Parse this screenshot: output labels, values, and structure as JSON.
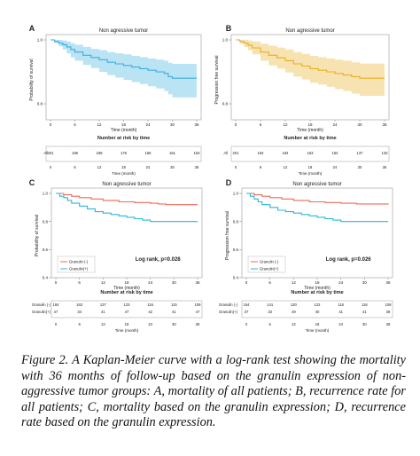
{
  "figure": {
    "caption_label": "Figure 2.",
    "caption_text": "A Kaplan-Meier curve with a log-rank test showing the mortality with 36 months of follow-up based on the granulin expression of non-aggressive tumor groups: A, mortality of all patients; B, recurrence rate for all patients; C, mortality based on the granulin expression; D, recurrence rate based on the granulin expression."
  },
  "colors": {
    "blue": "#3aaee0",
    "gold": "#e8b020",
    "red": "#ee6a5a",
    "cyan": "#2ab8d8"
  },
  "chart_data": [
    {
      "panel": "A",
      "type": "line",
      "title": "Non agressive tumor",
      "xlabel": "Time (month)",
      "ylabel": "Probability of survival",
      "xlim": [
        0,
        36
      ],
      "ylim": [
        0.75,
        1.0
      ],
      "xticks": [
        0,
        6,
        12,
        18,
        24,
        30,
        36
      ],
      "yticks": [
        "1.0",
        "0.8"
      ],
      "series": [
        {
          "color_key": "blue",
          "x": [
            0,
            1,
            2,
            3,
            4,
            5,
            6,
            8,
            10,
            12,
            14,
            16,
            18,
            20,
            22,
            24,
            26,
            28,
            29,
            30,
            33,
            36
          ],
          "y": [
            1.0,
            0.995,
            0.99,
            0.985,
            0.978,
            0.97,
            0.962,
            0.952,
            0.945,
            0.938,
            0.93,
            0.925,
            0.92,
            0.915,
            0.91,
            0.905,
            0.9,
            0.895,
            0.885,
            0.88,
            0.88,
            0.88
          ],
          "ci_lower": [
            1.0,
            0.99,
            0.98,
            0.97,
            0.958,
            0.945,
            0.935,
            0.922,
            0.912,
            0.9,
            0.89,
            0.882,
            0.875,
            0.868,
            0.862,
            0.855,
            0.848,
            0.84,
            0.83,
            0.82,
            0.82,
            0.82
          ],
          "ci_upper": [
            1.0,
            1.0,
            1.0,
            0.998,
            0.995,
            0.99,
            0.985,
            0.978,
            0.972,
            0.968,
            0.962,
            0.958,
            0.955,
            0.95,
            0.946,
            0.942,
            0.938,
            0.935,
            0.928,
            0.925,
            0.925,
            0.925
          ]
        }
      ],
      "risk_table": {
        "title": "Number at risk by time",
        "xlabel": "Time (month)",
        "rows": [
          {
            "label": "All",
            "values": [
              "201",
              "196",
              "189",
              "176",
              "166",
              "161",
              "153"
            ]
          }
        ]
      }
    },
    {
      "panel": "B",
      "type": "line",
      "title": "Non agressive tumor",
      "xlabel": "Time (month)",
      "ylabel": "Progression free survival",
      "xlim": [
        0,
        36
      ],
      "ylim": [
        0.75,
        1.0
      ],
      "xticks": [
        0,
        6,
        12,
        18,
        24,
        30,
        36
      ],
      "yticks": [
        "1.0",
        "0.8"
      ],
      "series": [
        {
          "color_key": "gold",
          "x": [
            0,
            1,
            2,
            3,
            4,
            6,
            8,
            10,
            12,
            14,
            16,
            18,
            20,
            22,
            24,
            26,
            28,
            30,
            33,
            36
          ],
          "y": [
            1.0,
            0.995,
            0.99,
            0.983,
            0.975,
            0.962,
            0.952,
            0.944,
            0.935,
            0.925,
            0.918,
            0.91,
            0.905,
            0.9,
            0.895,
            0.89,
            0.885,
            0.88,
            0.88,
            0.88
          ],
          "ci_lower": [
            1.0,
            0.988,
            0.978,
            0.968,
            0.955,
            0.935,
            0.92,
            0.91,
            0.898,
            0.885,
            0.876,
            0.866,
            0.86,
            0.853,
            0.846,
            0.84,
            0.832,
            0.825,
            0.825,
            0.825
          ],
          "ci_upper": [
            1.0,
            1.0,
            1.0,
            0.998,
            0.995,
            0.988,
            0.982,
            0.976,
            0.97,
            0.962,
            0.956,
            0.95,
            0.946,
            0.942,
            0.938,
            0.935,
            0.93,
            0.926,
            0.926,
            0.926
          ]
        }
      ],
      "risk_table": {
        "title": "Number at risk by time",
        "xlabel": "Time (month)",
        "rows": [
          {
            "label": "All",
            "values": [
              "201",
              "194",
              "184",
              "163",
              "152",
              "137",
              "133"
            ]
          }
        ]
      }
    },
    {
      "panel": "C",
      "type": "line",
      "title": "Non agressive tumor",
      "xlabel": "Time (month)",
      "ylabel": "Probability of survival",
      "xlim": [
        0,
        36
      ],
      "ylim": [
        0.4,
        1.0
      ],
      "xticks": [
        0,
        6,
        12,
        18,
        24,
        30,
        36
      ],
      "yticks": [
        "1.0",
        "0.8",
        "0.6",
        "0.4"
      ],
      "annotation": "Log rank, p=0.028",
      "legend": [
        "Granulin (-)",
        "Granulin(+)"
      ],
      "series": [
        {
          "name": "Granulin (-)",
          "color_key": "red",
          "x": [
            0,
            2,
            4,
            6,
            9,
            12,
            16,
            20,
            24,
            26,
            28,
            36
          ],
          "y": [
            1.0,
            0.99,
            0.98,
            0.97,
            0.96,
            0.95,
            0.94,
            0.935,
            0.93,
            0.925,
            0.92,
            0.92
          ]
        },
        {
          "name": "Granulin(+)",
          "color_key": "cyan",
          "x": [
            0,
            1,
            2,
            3,
            4,
            6,
            8,
            10,
            12,
            14,
            16,
            18,
            20,
            22,
            24,
            28,
            36
          ],
          "y": [
            1.0,
            0.98,
            0.97,
            0.95,
            0.93,
            0.91,
            0.89,
            0.87,
            0.86,
            0.85,
            0.84,
            0.83,
            0.82,
            0.81,
            0.8,
            0.8,
            0.8
          ]
        }
      ],
      "risk_table": {
        "title": "Number at risk by time",
        "xlabel": "Time (month)",
        "rows": [
          {
            "label": "Granulin (-)",
            "values": [
              "184",
              "162",
              "137",
              "123",
              "116",
              "115",
              "109"
            ]
          },
          {
            "label": "Granulin(+)",
            "values": [
              "47",
              "34",
              "41",
              "47",
              "42",
              "41",
              "47"
            ]
          }
        ]
      }
    },
    {
      "panel": "D",
      "type": "line",
      "title": "Non agressive tumor",
      "xlabel": "Time (month)",
      "ylabel": "Progression free survival",
      "xlim": [
        0,
        36
      ],
      "ylim": [
        0.4,
        1.0
      ],
      "xticks": [
        0,
        6,
        12,
        18,
        24,
        30,
        36
      ],
      "yticks": [
        "1.0",
        "0.8",
        "0.6",
        "0.4"
      ],
      "annotation": "Log rank, p=0.026",
      "legend": [
        "Granulin (-)",
        "Granulin(+)"
      ],
      "series": [
        {
          "name": "Granulin (-)",
          "color_key": "red",
          "x": [
            0,
            2,
            4,
            6,
            9,
            12,
            16,
            20,
            24,
            28,
            36
          ],
          "y": [
            1.0,
            0.99,
            0.98,
            0.97,
            0.96,
            0.95,
            0.94,
            0.935,
            0.93,
            0.925,
            0.92
          ]
        },
        {
          "name": "Granulin(+)",
          "color_key": "cyan",
          "x": [
            0,
            1,
            2,
            3,
            4,
            6,
            8,
            10,
            12,
            14,
            16,
            18,
            20,
            22,
            24,
            28,
            36
          ],
          "y": [
            1.0,
            0.98,
            0.96,
            0.94,
            0.92,
            0.9,
            0.88,
            0.87,
            0.86,
            0.85,
            0.84,
            0.83,
            0.82,
            0.81,
            0.8,
            0.8,
            0.8
          ]
        }
      ],
      "risk_table": {
        "title": "Number at risk by time",
        "xlabel": "Time (month)",
        "rows": [
          {
            "label": "Granulin (-)",
            "values": [
              "164",
              "141",
              "130",
              "122",
              "116",
              "116",
              "109"
            ]
          },
          {
            "label": "Granulin(+)",
            "values": [
              "37",
              "33",
              "49",
              "40",
              "41",
              "41",
              "38"
            ]
          }
        ]
      }
    }
  ]
}
